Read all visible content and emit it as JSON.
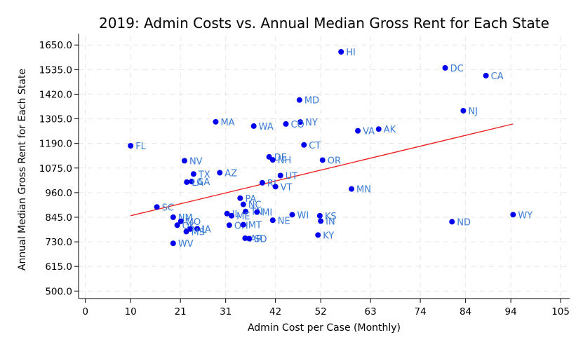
{
  "chart_data": {
    "type": "scatter",
    "title": "2019: Admin Costs vs. Annual Median Gross Rent for Each State",
    "xlabel": "Admin Cost per Case (Monthly)",
    "ylabel": "Annual Median Gross Rent for Each State",
    "xlim": [
      -1.5,
      107
    ],
    "ylim": [
      465,
      1690
    ],
    "x_ticks": [
      0,
      10,
      21,
      31,
      42,
      52,
      63,
      74,
      84,
      94,
      105
    ],
    "y_ticks": [
      500.0,
      615.0,
      730.0,
      845.0,
      960.0,
      1075.0,
      1190.0,
      1305.0,
      1420.0,
      1535.0,
      1650.0
    ],
    "y_tick_labels": [
      "500.0",
      "615.0",
      "730.0",
      "845.0",
      "960.0",
      "1075.0",
      "1190.0",
      "1305.0",
      "1420.0",
      "1535.0",
      "1650.0"
    ],
    "grid": true,
    "point_color": "#0000ee",
    "label_color": "#3a7bd5",
    "trend_color": "#ee2222",
    "trend_line": {
      "x": [
        10,
        94.5
      ],
      "y": [
        852,
        1281
      ]
    },
    "points": [
      {
        "label": "HI",
        "x": 56.5,
        "y": 1618
      },
      {
        "label": "DC",
        "x": 79.5,
        "y": 1543
      },
      {
        "label": "CA",
        "x": 88.5,
        "y": 1507
      },
      {
        "label": "MD",
        "x": 47.3,
        "y": 1393
      },
      {
        "label": "NJ",
        "x": 83.5,
        "y": 1343
      },
      {
        "label": "NY",
        "x": 47.5,
        "y": 1290
      },
      {
        "label": "MA",
        "x": 28.8,
        "y": 1291
      },
      {
        "label": "CO",
        "x": 44.3,
        "y": 1281
      },
      {
        "label": "WA",
        "x": 37.2,
        "y": 1271
      },
      {
        "label": "AK",
        "x": 64.8,
        "y": 1257
      },
      {
        "label": "VA",
        "x": 60.2,
        "y": 1249
      },
      {
        "label": "FL",
        "x": 10.0,
        "y": 1179
      },
      {
        "label": "CT",
        "x": 48.3,
        "y": 1183
      },
      {
        "label": "DE",
        "x": 40.6,
        "y": 1127
      },
      {
        "label": "NH",
        "x": 41.4,
        "y": 1113
      },
      {
        "label": "OR",
        "x": 52.4,
        "y": 1112
      },
      {
        "label": "NV",
        "x": 21.9,
        "y": 1109
      },
      {
        "label": "AZ",
        "x": 29.7,
        "y": 1053
      },
      {
        "label": "TX",
        "x": 23.9,
        "y": 1047
      },
      {
        "label": "UT",
        "x": 43.1,
        "y": 1040
      },
      {
        "label": "GA",
        "x": 23.5,
        "y": 1012
      },
      {
        "label": "LA",
        "x": 22.4,
        "y": 1009
      },
      {
        "label": "RI",
        "x": 39.1,
        "y": 1006
      },
      {
        "label": "VT",
        "x": 42.0,
        "y": 988
      },
      {
        "label": "MN",
        "x": 58.8,
        "y": 977
      },
      {
        "label": "PA",
        "x": 34.2,
        "y": 934
      },
      {
        "label": "NC",
        "x": 34.9,
        "y": 905
      },
      {
        "label": "SC",
        "x": 15.8,
        "y": 893
      },
      {
        "label": "TN",
        "x": 35.4,
        "y": 872
      },
      {
        "label": "MI",
        "x": 37.9,
        "y": 869
      },
      {
        "label": "IL",
        "x": 31.3,
        "y": 862
      },
      {
        "label": "WI",
        "x": 45.7,
        "y": 857
      },
      {
        "label": "KS",
        "x": 51.8,
        "y": 852
      },
      {
        "label": "WY",
        "x": 94.5,
        "y": 857
      },
      {
        "label": "ME",
        "x": 32.3,
        "y": 852
      },
      {
        "label": "NM",
        "x": 19.4,
        "y": 845
      },
      {
        "label": "NE",
        "x": 41.4,
        "y": 831
      },
      {
        "label": "IN",
        "x": 52.0,
        "y": 827
      },
      {
        "label": "ND",
        "x": 81.0,
        "y": 824
      },
      {
        "label": "MO",
        "x": 21.1,
        "y": 826
      },
      {
        "label": "OK",
        "x": 20.3,
        "y": 808
      },
      {
        "label": "OH",
        "x": 31.8,
        "y": 808
      },
      {
        "label": "MT",
        "x": 34.9,
        "y": 810
      },
      {
        "label": "AL",
        "x": 23.2,
        "y": 790
      },
      {
        "label": "IA",
        "x": 24.7,
        "y": 791
      },
      {
        "label": "MS",
        "x": 22.3,
        "y": 778
      },
      {
        "label": "KY",
        "x": 51.4,
        "y": 762
      },
      {
        "label": "AR",
        "x": 35.3,
        "y": 747
      },
      {
        "label": "SD",
        "x": 36.2,
        "y": 745
      },
      {
        "label": "WV",
        "x": 19.4,
        "y": 723
      }
    ]
  }
}
